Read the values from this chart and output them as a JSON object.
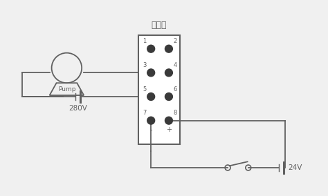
{
  "bg_color": "#f0f0f0",
  "line_color": "#606060",
  "fig_w": 4.74,
  "fig_h": 2.84,
  "relay_label": "继电器",
  "v280": "280V",
  "v24": "24V",
  "pump_text": "Pump",
  "pin_minus": "-",
  "pin_plus": "+"
}
